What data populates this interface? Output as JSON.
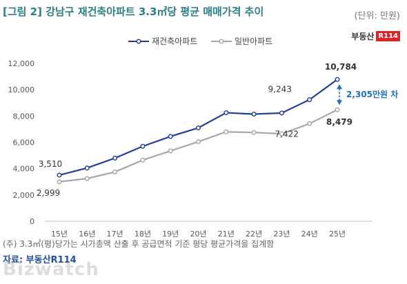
{
  "header": {
    "title": "[그림 2] 강남구 재건축아파트 3.3㎡당 평균 매매가격 추이",
    "unit": "(단위: 만원)"
  },
  "brand": {
    "text": "부동산",
    "badge": "R114"
  },
  "footer": {
    "note": "(주) 3.3㎡(평)당가는 시가총액 산출 후 공급면적 기준 평당 평균가격을 집계함",
    "source": "자료: 부동산R114",
    "watermark": "Bizwatch"
  },
  "chart_data": {
    "type": "line",
    "categories": [
      "15년",
      "16년",
      "17년",
      "18년",
      "19년",
      "20년",
      "21년",
      "22년",
      "23년",
      "24년",
      "25년"
    ],
    "series": [
      {
        "name": "재건축아파트",
        "color": "#1f3c99",
        "values": [
          3510,
          4050,
          4800,
          5700,
          6450,
          7100,
          8250,
          8150,
          8230,
          9243,
          10784
        ]
      },
      {
        "name": "일반아파트",
        "color": "#a6a6a6",
        "values": [
          2999,
          3250,
          3750,
          4650,
          5350,
          6050,
          6800,
          6750,
          6650,
          7422,
          8479
        ]
      }
    ],
    "data_labels": [
      {
        "series": 0,
        "index": 0,
        "text": "3,510"
      },
      {
        "series": 1,
        "index": 0,
        "text": "2,999"
      },
      {
        "series": 0,
        "index": 9,
        "text": "9,243"
      },
      {
        "series": 1,
        "index": 9,
        "text": "7,422"
      },
      {
        "series": 0,
        "index": 10,
        "text": "10,784"
      },
      {
        "series": 1,
        "index": 10,
        "text": "8,479"
      }
    ],
    "annotation": {
      "text": "2,305만원 차",
      "color": "#1f6fc0"
    },
    "yticks": [
      0,
      2000,
      4000,
      6000,
      8000,
      10000,
      12000
    ],
    "ytick_labels": [
      "0",
      "2,000",
      "4,000",
      "6,000",
      "8,000",
      "10,000",
      "12,000"
    ],
    "ylim": [
      0,
      12000
    ],
    "legend_position": "top-center",
    "grid": false
  }
}
